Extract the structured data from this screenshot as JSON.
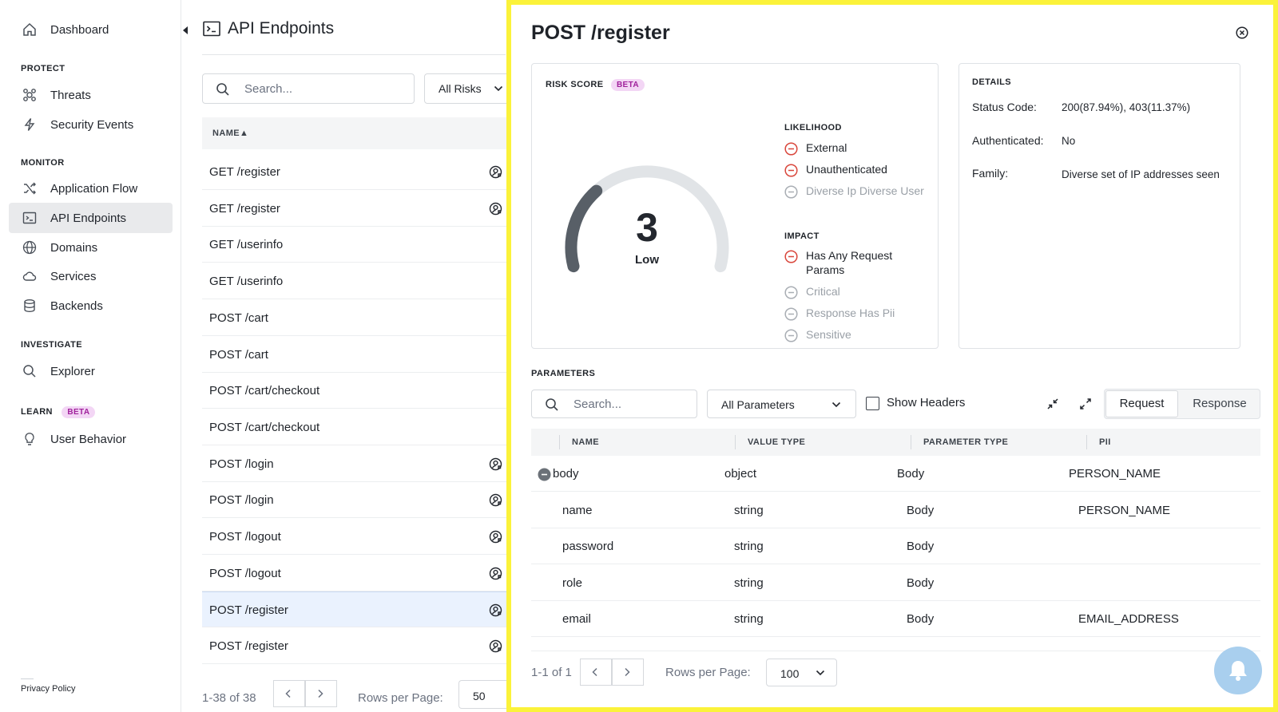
{
  "sidebar": {
    "dashboard": "Dashboard",
    "sections": {
      "protect": "PROTECT",
      "monitor": "MONITOR",
      "investigate": "INVESTIGATE",
      "learn": "LEARN",
      "learn_badge": "BETA"
    },
    "items": {
      "threats": "Threats",
      "security_events": "Security Events",
      "application_flow": "Application Flow",
      "api_endpoints": "API Endpoints",
      "domains": "Domains",
      "services": "Services",
      "backends": "Backends",
      "explorer": "Explorer",
      "user_behavior": "User Behavior"
    },
    "privacy_policy": "Privacy Policy"
  },
  "main": {
    "title": "API Endpoints",
    "search_placeholder": "Search...",
    "risk_filter": "All Risks",
    "column_name": "NAME▲",
    "endpoints": [
      {
        "name": "GET /register",
        "icon": true
      },
      {
        "name": "GET /register",
        "icon": true
      },
      {
        "name": "GET /userinfo",
        "icon": false
      },
      {
        "name": "GET /userinfo",
        "icon": false
      },
      {
        "name": "POST /cart",
        "icon": false
      },
      {
        "name": "POST /cart",
        "icon": false
      },
      {
        "name": "POST /cart/checkout",
        "icon": false
      },
      {
        "name": "POST /cart/checkout",
        "icon": false
      },
      {
        "name": "POST /login",
        "icon": true
      },
      {
        "name": "POST /login",
        "icon": true
      },
      {
        "name": "POST /logout",
        "icon": true
      },
      {
        "name": "POST /logout",
        "icon": true
      },
      {
        "name": "POST /register",
        "icon": true
      },
      {
        "name": "POST /register",
        "icon": true
      }
    ],
    "selected_index": 12,
    "range": "1-38 of 38",
    "rows_per_page_label": "Rows per Page:",
    "rows_per_page_value": "50"
  },
  "panel": {
    "title": "POST /register",
    "risk": {
      "heading": "RISK SCORE",
      "badge": "BETA",
      "score": "3",
      "score_fraction": 0.3,
      "level": "Low",
      "likelihood_heading": "LIKELIHOOD",
      "likelihood": [
        {
          "label": "External",
          "active": true
        },
        {
          "label": "Unauthenticated",
          "active": true
        },
        {
          "label": "Diverse Ip Diverse User",
          "active": false
        }
      ],
      "impact_heading": "IMPACT",
      "impact": [
        {
          "label": "Has Any Request Params",
          "active": true
        },
        {
          "label": "Critical",
          "active": false
        },
        {
          "label": "Response Has Pii",
          "active": false
        },
        {
          "label": "Sensitive",
          "active": false
        }
      ]
    },
    "details": {
      "heading": "DETAILS",
      "status_code_label": "Status Code:",
      "status_code_value": "200(87.94%), 403(11.37%)",
      "authenticated_label": "Authenticated:",
      "authenticated_value": "No",
      "family_label": "Family:",
      "family_value": "Diverse set of IP addresses seen"
    },
    "parameters": {
      "heading": "PARAMETERS",
      "search_placeholder": "Search...",
      "filter": "All Parameters",
      "show_headers": "Show Headers",
      "tab_request": "Request",
      "tab_response": "Response",
      "columns": {
        "name": "NAME",
        "value_type": "VALUE TYPE",
        "parameter_type": "PARAMETER TYPE",
        "pii": "PII"
      },
      "rows": [
        {
          "name": "body",
          "value_type": "object",
          "parameter_type": "Body",
          "pii": "PERSON_NAME"
        },
        {
          "name": "name",
          "value_type": "string",
          "parameter_type": "Body",
          "pii": "PERSON_NAME"
        },
        {
          "name": "password",
          "value_type": "string",
          "parameter_type": "Body",
          "pii": ""
        },
        {
          "name": "role",
          "value_type": "string",
          "parameter_type": "Body",
          "pii": ""
        },
        {
          "name": "email",
          "value_type": "string",
          "parameter_type": "Body",
          "pii": "EMAIL_ADDRESS"
        }
      ],
      "range": "1-1 of 1",
      "rows_per_page_label": "Rows per Page:",
      "rows_per_page_value": "100"
    }
  },
  "colors": {
    "highlight_border": "#fbf23a",
    "risk_red": "#d9463b",
    "selected_row": "#eaf2fe",
    "beta_bg": "#f3d6f5",
    "beta_fg": "#a0219c",
    "chat_button": "#a9cfee"
  }
}
